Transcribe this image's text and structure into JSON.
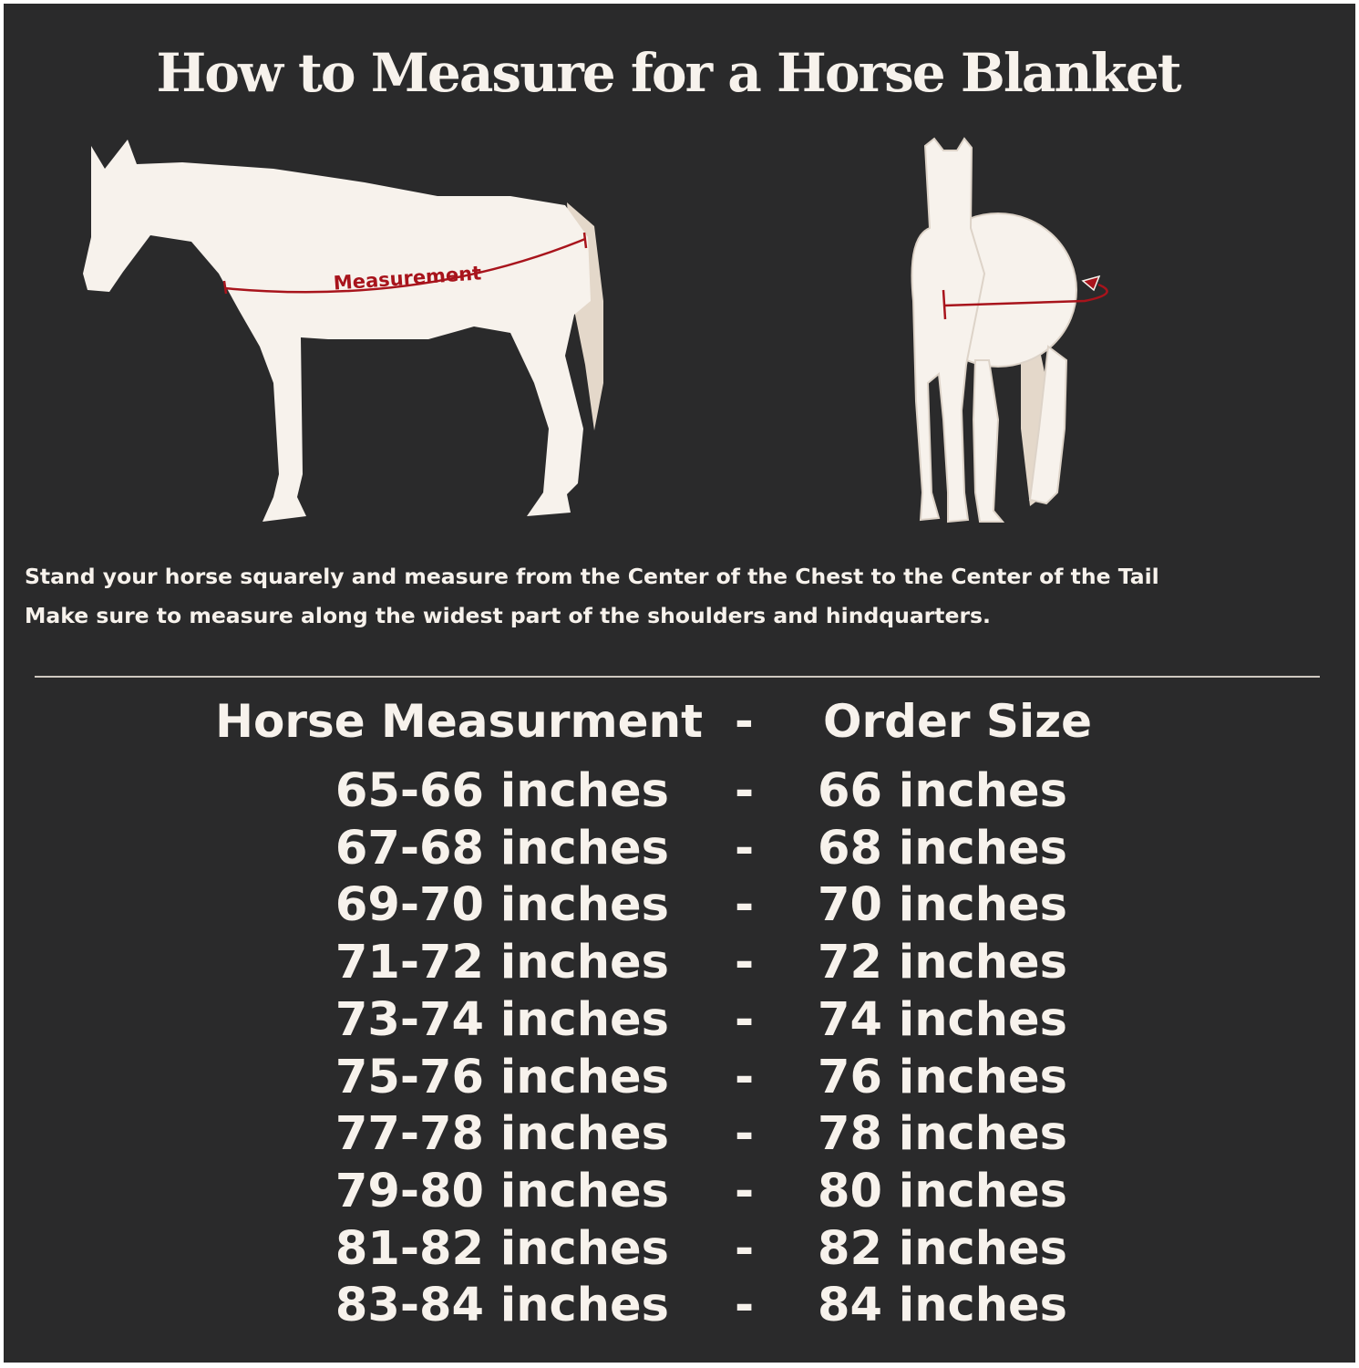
{
  "title": "How to Measure for a Horse Blanket",
  "diagram": {
    "side_label": "Measurement",
    "colors": {
      "background": "#2a2a2b",
      "horse": "#f7f2ec",
      "tail": "#e4d8ca",
      "measure_line": "#a8141c"
    }
  },
  "instructions": [
    "Stand your horse squarely and measure from the Center of the Chest to the Center of the Tail",
    "Make sure to measure along the widest part of the shoulders and hindquarters."
  ],
  "table": {
    "header": {
      "left": "Horse Measurment",
      "sep": "-",
      "right": "Order Size"
    },
    "rows": [
      {
        "measurement": "65-66 inches",
        "sep": "-",
        "size": "66 inches"
      },
      {
        "measurement": "67-68 inches",
        "sep": "-",
        "size": "68 inches"
      },
      {
        "measurement": "69-70 inches",
        "sep": "-",
        "size": "70 inches"
      },
      {
        "measurement": "71-72 inches",
        "sep": "-",
        "size": "72 inches"
      },
      {
        "measurement": "73-74 inches",
        "sep": "-",
        "size": "74 inches"
      },
      {
        "measurement": "75-76 inches",
        "sep": "-",
        "size": "76 inches"
      },
      {
        "measurement": "77-78 inches",
        "sep": "-",
        "size": "78 inches"
      },
      {
        "measurement": "79-80 inches",
        "sep": "-",
        "size": "80 inches"
      },
      {
        "measurement": "81-82 inches",
        "sep": "-",
        "size": "82 inches"
      },
      {
        "measurement": "83-84 inches",
        "sep": "-",
        "size": "84 inches"
      }
    ]
  }
}
